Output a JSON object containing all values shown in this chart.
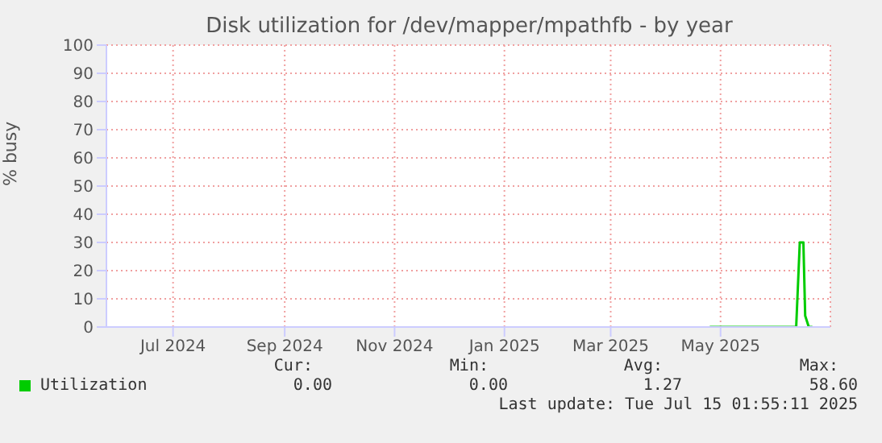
{
  "chart_data": {
    "type": "line",
    "title": "Disk utilization for /dev/mapper/mpathfb - by year",
    "ylabel": "% busy",
    "xlim": [
      "2024-06-08",
      "2025-07-15"
    ],
    "xticks": [
      {
        "value": "2024-07-15",
        "label": "Jul 2024"
      },
      {
        "value": "2024-09-15",
        "label": "Sep 2024"
      },
      {
        "value": "2024-11-15",
        "label": "Nov 2024"
      },
      {
        "value": "2025-01-15",
        "label": "Jan 2025"
      },
      {
        "value": "2025-03-15",
        "label": "Mar 2025"
      },
      {
        "value": "2025-05-15",
        "label": "May 2025"
      }
    ],
    "ylim": [
      0,
      100
    ],
    "yticks": [
      0,
      10,
      20,
      30,
      40,
      50,
      60,
      70,
      80,
      90,
      100
    ],
    "x": [
      "2025-05-09",
      "2025-06-26",
      "2025-06-28",
      "2025-06-30",
      "2025-07-01",
      "2025-07-03",
      "2025-07-05"
    ],
    "series": [
      {
        "name": "Utilization",
        "color": "#00cc00",
        "values": [
          0,
          0,
          30,
          30,
          4,
          0,
          0
        ]
      }
    ],
    "grid": true,
    "legend": "bottom left",
    "marker": "none",
    "line_style": "solid",
    "annotations": [
      "Cur:",
      "Min:",
      "Avg:",
      "Max:",
      "0.00",
      "0.00",
      "1.27",
      "58.60",
      "Last update: Tue Jul 15 01:55:11 2025"
    ]
  }
}
